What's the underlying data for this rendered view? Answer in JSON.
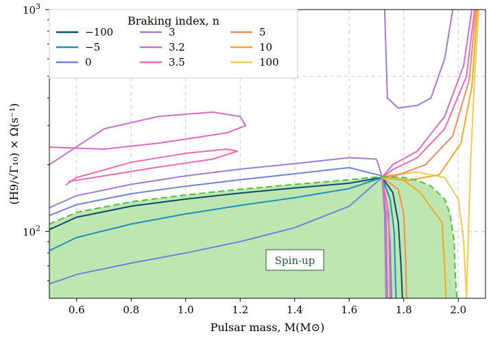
{
  "chart_data": {
    "type": "line",
    "xlabel": "Pulsar mass, M(M⊙)",
    "ylabel": "(H9/√Γ₁₀) × Ω(s⁻¹)",
    "xlim": [
      0.5,
      2.1
    ],
    "ylim": [
      50,
      1000
    ],
    "yscale": "log",
    "grid": true,
    "x_ticks": [
      0.6,
      0.8,
      1.0,
      1.2,
      1.4,
      1.6,
      1.8,
      2.0
    ],
    "x_tick_labels": [
      "0.6",
      "0.8",
      "1.0",
      "1.2",
      "1.4",
      "1.6",
      "1.8",
      "2.0"
    ],
    "y_tick_labels": {
      "base": "10",
      "exp_low": "2",
      "exp_high": "3"
    },
    "legend": {
      "title": "Braking index, n",
      "placement": "top-left",
      "entries": [
        {
          "label": "−100",
          "color": "#0b4a6a"
        },
        {
          "label": "−5",
          "color": "#1a8fc4"
        },
        {
          "label": "0",
          "color": "#6a82d8"
        },
        {
          "label": "3",
          "color": "#a07ad8"
        },
        {
          "label": "3.2",
          "color": "#d46ac8"
        },
        {
          "label": "3.5",
          "color": "#f06aa8"
        },
        {
          "label": "5",
          "color": "#f5895a"
        },
        {
          "label": "10",
          "color": "#f5a623"
        },
        {
          "label": "100",
          "color": "#f7c948"
        }
      ]
    },
    "annotation": {
      "text": "Spin-up",
      "x": 1.35,
      "y": 73
    },
    "spinup_boundary": {
      "color": "#4cbf3c",
      "style": "dashed",
      "fill": "#bde6b0",
      "upper_left": [
        [
          0.5,
          108
        ],
        [
          0.6,
          122
        ],
        [
          0.8,
          136
        ],
        [
          1.0,
          146
        ],
        [
          1.2,
          155
        ],
        [
          1.4,
          163
        ],
        [
          1.6,
          171
        ],
        [
          1.72,
          177
        ]
      ],
      "upper_right": [
        [
          1.72,
          177
        ],
        [
          1.8,
          175
        ],
        [
          1.85,
          170
        ],
        [
          1.9,
          160
        ],
        [
          1.95,
          140
        ],
        [
          1.97,
          120
        ],
        [
          1.985,
          90
        ],
        [
          1.99,
          60
        ],
        [
          1.995,
          50
        ]
      ]
    },
    "series": [
      {
        "name": "−100",
        "color": "#0b4a6a",
        "left": [
          [
            0.5,
            102
          ],
          [
            0.6,
            116
          ],
          [
            0.8,
            130
          ],
          [
            1.0,
            140
          ],
          [
            1.2,
            149
          ],
          [
            1.4,
            157
          ],
          [
            1.6,
            165
          ],
          [
            1.72,
            175
          ]
        ],
        "right": [
          [
            1.72,
            175
          ],
          [
            1.76,
            150
          ],
          [
            1.78,
            110
          ],
          [
            1.79,
            70
          ],
          [
            1.795,
            50
          ]
        ]
      },
      {
        "name": "−5",
        "color": "#1a8fc4",
        "left": [
          [
            0.5,
            82
          ],
          [
            0.6,
            94
          ],
          [
            0.8,
            108
          ],
          [
            1.0,
            120
          ],
          [
            1.2,
            131
          ],
          [
            1.4,
            142
          ],
          [
            1.6,
            156
          ],
          [
            1.72,
            175
          ]
        ],
        "right": [
          [
            1.72,
            175
          ],
          [
            1.75,
            140
          ],
          [
            1.765,
            100
          ],
          [
            1.77,
            60
          ],
          [
            1.772,
            50
          ]
        ]
      },
      {
        "name": "0",
        "color": "#6a82d8",
        "left": [
          [
            0.5,
            58
          ],
          [
            0.6,
            64
          ],
          [
            0.8,
            72
          ],
          [
            1.0,
            80
          ],
          [
            1.2,
            90
          ],
          [
            1.4,
            104
          ],
          [
            1.6,
            130
          ],
          [
            1.72,
            175
          ]
        ],
        "right": [
          [
            1.72,
            175
          ],
          [
            1.74,
            130
          ],
          [
            1.75,
            90
          ],
          [
            1.755,
            50
          ]
        ],
        "upper": [
          [
            0.5,
            118
          ],
          [
            0.6,
            132
          ],
          [
            0.8,
            148
          ],
          [
            1.0,
            160
          ],
          [
            1.2,
            171
          ],
          [
            1.4,
            182
          ],
          [
            1.6,
            194
          ],
          [
            1.72,
            178
          ]
        ]
      },
      {
        "name": "3",
        "color": "#a07ad8",
        "left": [
          [
            0.5,
            128
          ],
          [
            0.6,
            145
          ],
          [
            0.8,
            163
          ],
          [
            1.0,
            178
          ],
          [
            1.2,
            191
          ],
          [
            1.4,
            202
          ],
          [
            1.6,
            215
          ],
          [
            1.7,
            212
          ],
          [
            1.72,
            178
          ]
        ],
        "right": [
          [
            1.72,
            178
          ],
          [
            1.73,
            120
          ],
          [
            1.735,
            50
          ]
        ],
        "top": [
          [
            1.73,
            1000
          ],
          [
            1.74,
            400
          ],
          [
            1.78,
            360
          ],
          [
            1.85,
            370
          ],
          [
            1.9,
            400
          ],
          [
            1.95,
            600
          ],
          [
            1.98,
            1000
          ]
        ]
      },
      {
        "name": "3.2",
        "color": "#d46ac8",
        "loop": [
          [
            0.5,
            200
          ],
          [
            0.7,
            290
          ],
          [
            0.9,
            330
          ],
          [
            1.1,
            345
          ],
          [
            1.2,
            330
          ],
          [
            1.22,
            300
          ],
          [
            1.15,
            278
          ],
          [
            0.9,
            250
          ],
          [
            0.7,
            235
          ],
          [
            0.5,
            240
          ]
        ],
        "right": [
          [
            1.72,
            175
          ],
          [
            1.735,
            120
          ],
          [
            1.74,
            50
          ]
        ]
      },
      {
        "name": "3.5",
        "color": "#f06aa8",
        "loop": [
          [
            0.56,
            162
          ],
          [
            0.6,
            175
          ],
          [
            0.8,
            205
          ],
          [
            1.0,
            225
          ],
          [
            1.15,
            235
          ],
          [
            1.19,
            230
          ],
          [
            1.1,
            212
          ],
          [
            0.9,
            195
          ],
          [
            0.7,
            178
          ],
          [
            0.57,
            168
          ]
        ],
        "right": [
          [
            1.72,
            175
          ],
          [
            1.745,
            120
          ],
          [
            1.75,
            50
          ]
        ]
      },
      {
        "name": "5",
        "color": "#f5895a",
        "right": [
          [
            1.72,
            175
          ],
          [
            1.78,
            155
          ],
          [
            1.8,
            120
          ],
          [
            1.808,
            70
          ],
          [
            1.81,
            50
          ]
        ]
      },
      {
        "name": "10",
        "color": "#f5a623",
        "right": [
          [
            1.72,
            175
          ],
          [
            1.8,
            170
          ],
          [
            1.86,
            150
          ],
          [
            1.94,
            110
          ],
          [
            1.95,
            70
          ],
          [
            1.955,
            50
          ]
        ]
      },
      {
        "name": "100",
        "color": "#f7c948",
        "right": [
          [
            1.72,
            178
          ],
          [
            1.85,
            185
          ],
          [
            1.95,
            175
          ],
          [
            2.0,
            140
          ],
          [
            2.02,
            90
          ],
          [
            2.03,
            50
          ]
        ]
      }
    ],
    "upper_right_curves": [
      {
        "color": "#d46ac8",
        "points": [
          [
            1.72,
            175
          ],
          [
            1.76,
            200
          ],
          [
            1.85,
            230
          ],
          [
            1.95,
            330
          ],
          [
            2.02,
            560
          ],
          [
            2.05,
            1000
          ]
        ]
      },
      {
        "color": "#f06aa8",
        "points": [
          [
            1.72,
            175
          ],
          [
            1.76,
            190
          ],
          [
            1.85,
            215
          ],
          [
            1.95,
            290
          ],
          [
            2.03,
            500
          ],
          [
            2.06,
            1000
          ]
        ]
      },
      {
        "color": "#f5895a",
        "points": [
          [
            1.72,
            175
          ],
          [
            1.78,
            180
          ],
          [
            1.88,
            200
          ],
          [
            1.98,
            270
          ],
          [
            2.04,
            480
          ],
          [
            2.065,
            1000
          ]
        ]
      },
      {
        "color": "#f5a623",
        "points": [
          [
            1.72,
            175
          ],
          [
            1.82,
            170
          ],
          [
            1.93,
            180
          ],
          [
            2.01,
            250
          ],
          [
            2.05,
            450
          ],
          [
            2.07,
            1000
          ]
        ]
      },
      {
        "color": "#f7c948",
        "points": [
          [
            2.03,
            50
          ],
          [
            2.045,
            200
          ],
          [
            2.06,
            500
          ],
          [
            2.075,
            1000
          ]
        ]
      }
    ]
  }
}
